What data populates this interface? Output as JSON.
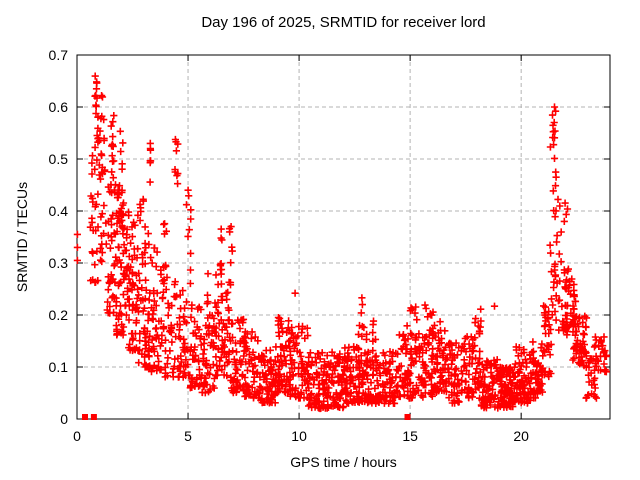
{
  "window": {
    "title": "Day 196 of 2025, SRMTID for receiver lord"
  },
  "chart_data": {
    "type": "scatter",
    "title": "Day 196 of 2025, SRMTID for receiver lord",
    "xlabel": "GPS time / hours",
    "ylabel": "SRMTID / TECUs",
    "xlim": [
      0,
      24
    ],
    "ylim": [
      0,
      0.7
    ],
    "xticks": {
      "values": [
        0,
        5,
        10,
        15,
        20
      ],
      "labels": [
        "0",
        "5",
        "10",
        "15",
        "20"
      ]
    },
    "yticks": {
      "values": [
        0,
        0.1,
        0.2,
        0.3,
        0.4,
        0.5,
        0.6,
        0.7
      ],
      "labels": [
        "0",
        "0.1",
        "0.2",
        "0.3",
        "0.4",
        "0.5",
        "0.6",
        "0.7"
      ]
    },
    "grid": {
      "show": true,
      "style": "dashed",
      "color": "#b3b3b3"
    },
    "legend": {
      "show": false
    },
    "colors": {
      "marker": "#ff0000",
      "axis": "#000000",
      "background": "#ffffff",
      "text": "#000000"
    },
    "series": [
      {
        "name": "SRMTID",
        "marker": "plus",
        "color": "#ff0000",
        "explicit_points": [
          [
            0.02,
            0.305
          ],
          [
            0.02,
            0.33
          ],
          [
            0.02,
            0.355
          ],
          [
            3.3,
            0.53
          ],
          [
            4.46,
            0.533
          ],
          [
            9.82,
            0.242
          ],
          [
            12.8,
            0.204
          ],
          [
            12.83,
            0.233
          ],
          [
            12.85,
            0.22
          ],
          [
            15.67,
            0.219
          ],
          [
            18.8,
            0.217
          ],
          [
            21.5,
            0.6
          ],
          [
            21.55,
            0.592
          ]
        ],
        "cluster_model": {
          "seed": 42,
          "segments": [
            [
              0.6,
              1.0,
              26,
              0.26,
              0.55,
              1.3
            ],
            [
              0.8,
              0.95,
              16,
              0.52,
              0.66,
              1.0
            ],
            [
              0.95,
              1.15,
              10,
              0.45,
              0.64,
              1.0
            ],
            [
              1.0,
              1.35,
              22,
              0.3,
              0.58,
              1.3
            ],
            [
              1.35,
              1.75,
              40,
              0.2,
              0.5,
              1.4
            ],
            [
              1.5,
              1.7,
              12,
              0.45,
              0.62,
              1.0
            ],
            [
              1.75,
              2.25,
              70,
              0.16,
              0.45,
              1.5
            ],
            [
              1.8,
              2.1,
              8,
              0.42,
              0.56,
              1.0
            ],
            [
              2.25,
              2.75,
              60,
              0.13,
              0.4,
              1.5
            ],
            [
              2.75,
              3.25,
              55,
              0.1,
              0.38,
              1.5
            ],
            [
              2.8,
              3.0,
              6,
              0.35,
              0.46,
              1.0
            ],
            [
              3.25,
              3.35,
              6,
              0.44,
              0.53,
              1.0
            ],
            [
              3.25,
              3.85,
              50,
              0.09,
              0.33,
              1.6
            ],
            [
              3.9,
              4.1,
              10,
              0.25,
              0.38,
              1.2
            ],
            [
              3.85,
              4.45,
              40,
              0.08,
              0.28,
              1.6
            ],
            [
              4.4,
              4.55,
              8,
              0.42,
              0.54,
              1.0
            ],
            [
              4.45,
              5.0,
              40,
              0.08,
              0.25,
              1.6
            ],
            [
              4.9,
              5.15,
              10,
              0.25,
              0.45,
              1.2
            ],
            [
              5.0,
              5.6,
              45,
              0.06,
              0.22,
              1.5
            ],
            [
              5.6,
              6.2,
              50,
              0.05,
              0.2,
              1.5
            ],
            [
              5.85,
              5.95,
              4,
              0.22,
              0.3,
              1.0
            ],
            [
              6.2,
              6.9,
              60,
              0.08,
              0.28,
              1.3
            ],
            [
              6.45,
              6.55,
              8,
              0.28,
              0.37,
              1.0
            ],
            [
              6.85,
              7.0,
              8,
              0.25,
              0.37,
              1.0
            ],
            [
              6.9,
              7.5,
              55,
              0.05,
              0.2,
              1.5
            ],
            [
              7.5,
              8.2,
              60,
              0.04,
              0.17,
              1.5
            ],
            [
              8.2,
              9.0,
              70,
              0.03,
              0.14,
              1.4
            ],
            [
              9.0,
              9.6,
              60,
              0.05,
              0.2,
              1.3
            ],
            [
              9.6,
              10.4,
              70,
              0.04,
              0.18,
              1.5
            ],
            [
              10.4,
              11.2,
              70,
              0.02,
              0.13,
              1.4
            ],
            [
              11.2,
              12.0,
              75,
              0.02,
              0.13,
              1.4
            ],
            [
              12.0,
              12.8,
              70,
              0.03,
              0.14,
              1.4
            ],
            [
              12.5,
              13.1,
              20,
              0.08,
              0.19,
              1.2
            ],
            [
              12.8,
              13.6,
              70,
              0.03,
              0.13,
              1.4
            ],
            [
              13.3,
              13.5,
              6,
              0.13,
              0.19,
              1.0
            ],
            [
              13.6,
              14.4,
              65,
              0.03,
              0.13,
              1.4
            ],
            [
              14.4,
              15.2,
              60,
              0.04,
              0.17,
              1.4
            ],
            [
              14.75,
              15.3,
              10,
              0.13,
              0.22,
              1.1
            ],
            [
              15.2,
              16.0,
              60,
              0.04,
              0.17,
              1.4
            ],
            [
              15.7,
              16.5,
              15,
              0.14,
              0.22,
              1.1
            ],
            [
              16.0,
              16.6,
              50,
              0.05,
              0.18,
              1.3
            ],
            [
              16.6,
              17.4,
              60,
              0.03,
              0.15,
              1.4
            ],
            [
              17.4,
              18.2,
              60,
              0.04,
              0.17,
              1.3
            ],
            [
              17.9,
              18.2,
              8,
              0.14,
              0.22,
              1.0
            ],
            [
              18.2,
              19.0,
              70,
              0.02,
              0.12,
              1.4
            ],
            [
              19.0,
              19.7,
              90,
              0.02,
              0.1,
              1.3
            ],
            [
              19.7,
              20.4,
              65,
              0.03,
              0.14,
              1.4
            ],
            [
              20.4,
              21.0,
              55,
              0.04,
              0.15,
              1.3
            ],
            [
              21.0,
              21.35,
              30,
              0.08,
              0.22,
              1.2
            ],
            [
              21.3,
              21.6,
              26,
              0.18,
              0.55,
              1.2
            ],
            [
              21.4,
              21.6,
              8,
              0.5,
              0.6,
              1.0
            ],
            [
              21.6,
              22.1,
              30,
              0.17,
              0.43,
              1.3
            ],
            [
              21.9,
              22.45,
              40,
              0.16,
              0.29,
              1.2
            ],
            [
              22.3,
              22.95,
              55,
              0.1,
              0.2,
              1.2
            ],
            [
              22.9,
              23.45,
              25,
              0.04,
              0.13,
              1.2
            ],
            [
              23.3,
              23.85,
              30,
              0.09,
              0.16,
              1.1
            ]
          ]
        }
      },
      {
        "name": "zero-markers",
        "marker": "filled-square",
        "color": "#ff0000",
        "points": [
          [
            0.36,
            0
          ],
          [
            0.76,
            0
          ],
          [
            14.88,
            0
          ]
        ]
      }
    ]
  }
}
